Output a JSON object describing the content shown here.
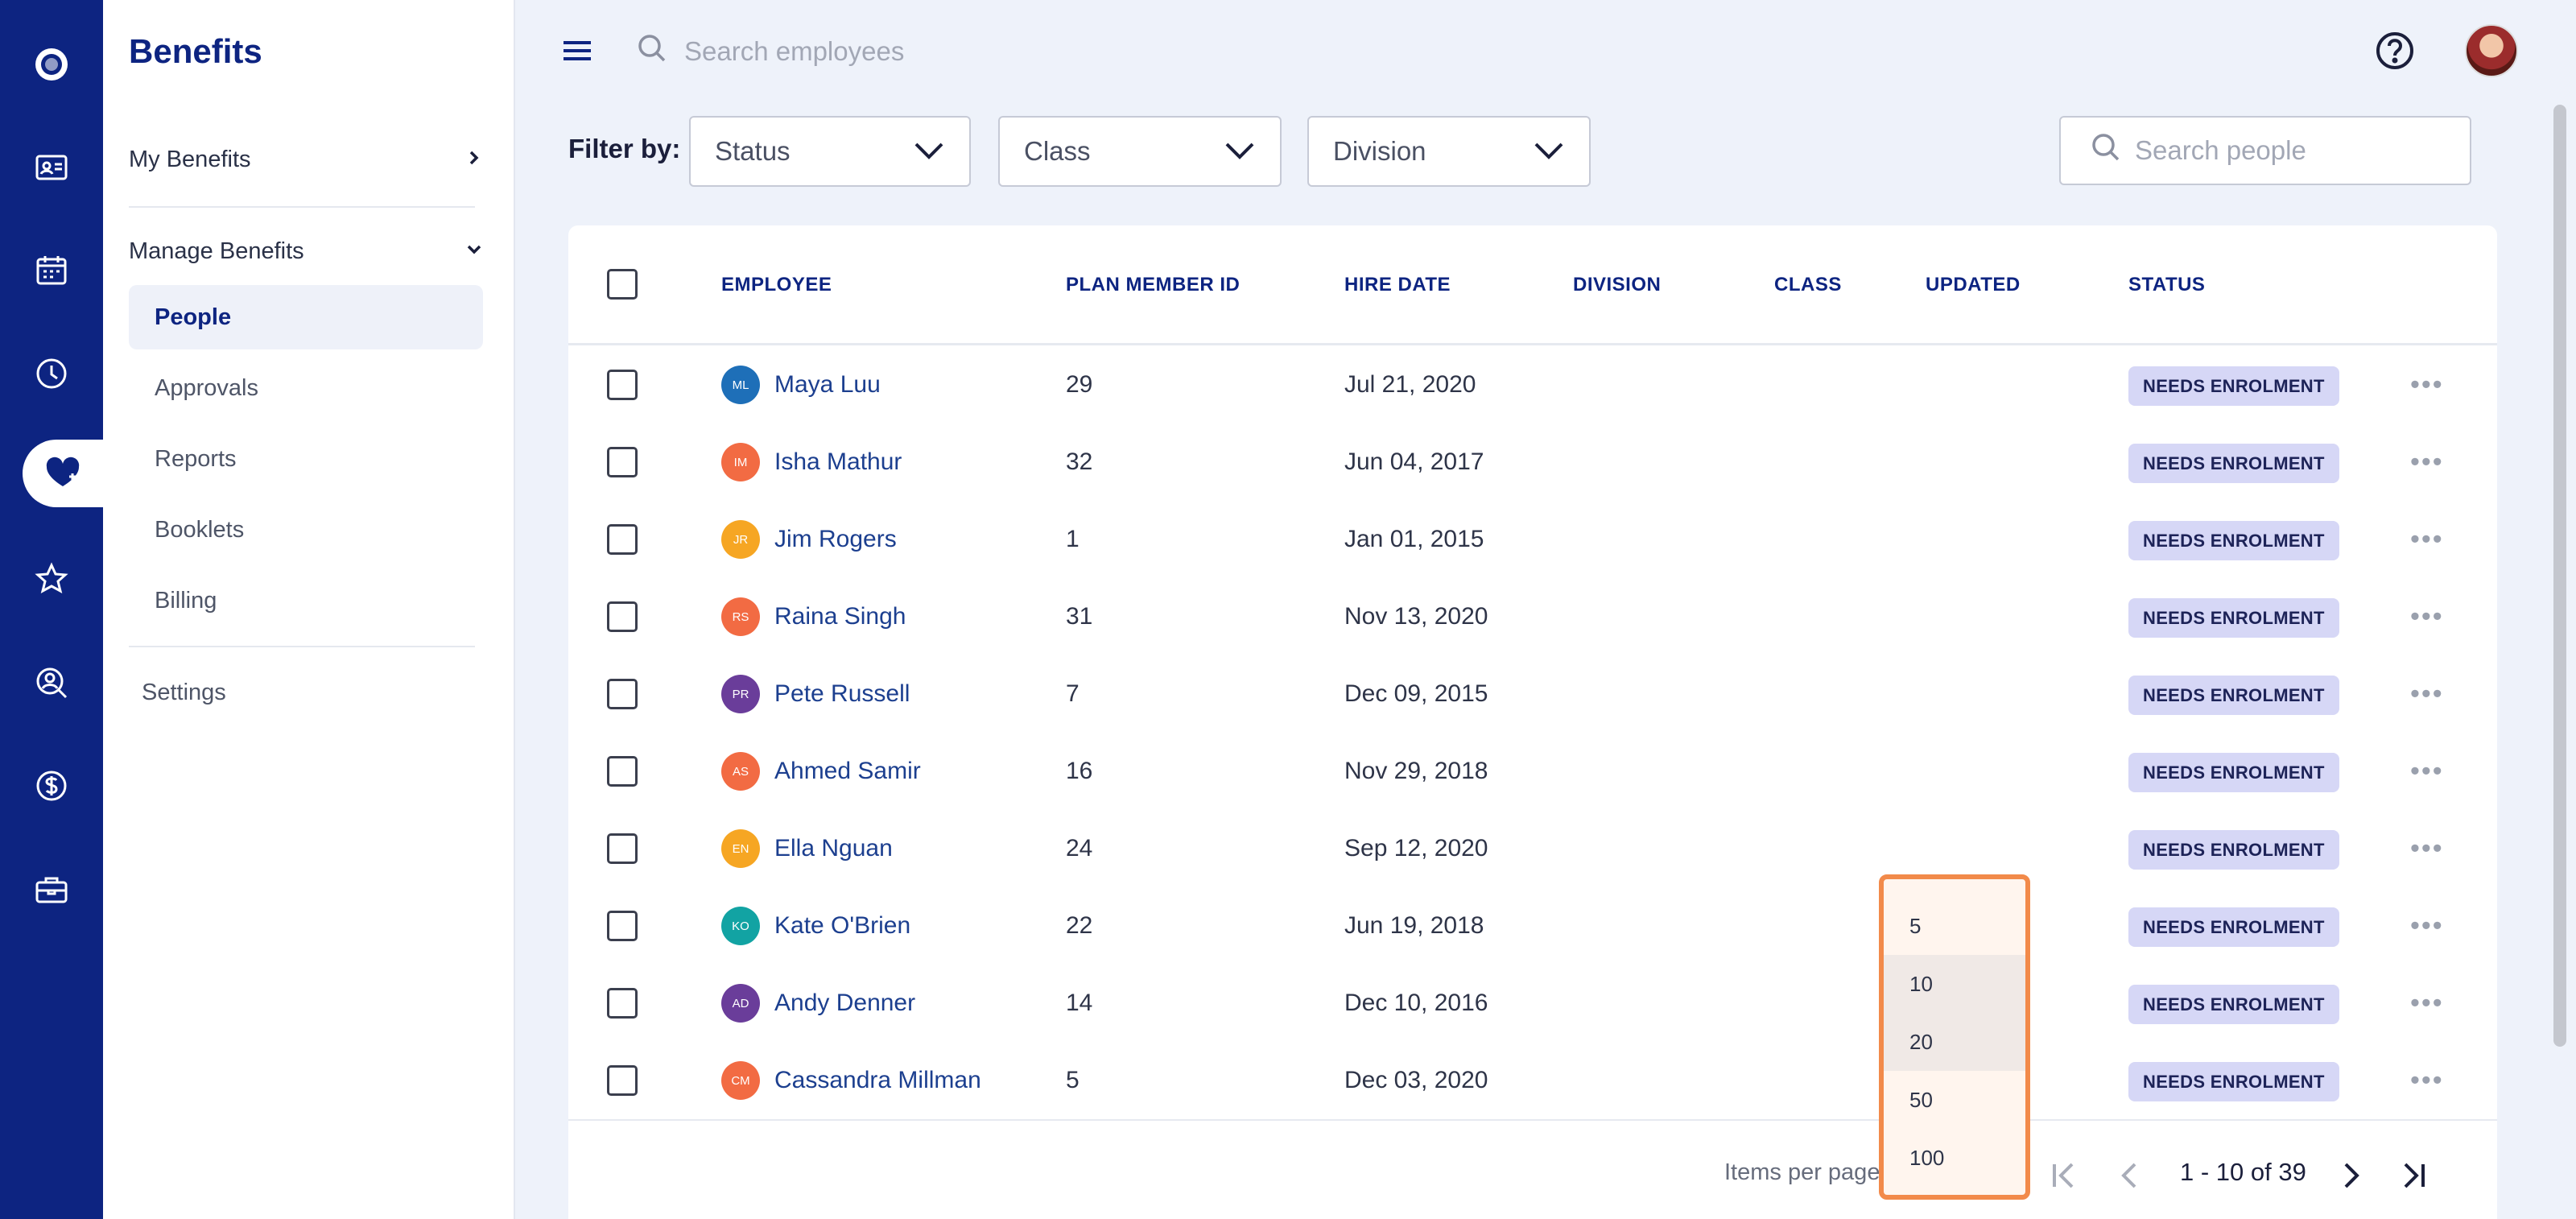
{
  "sidebar": {
    "title": "Benefits",
    "my_benefits": "My Benefits",
    "manage_benefits": "Manage Benefits",
    "items": [
      {
        "label": "People"
      },
      {
        "label": "Approvals"
      },
      {
        "label": "Reports"
      },
      {
        "label": "Booklets"
      },
      {
        "label": "Billing"
      }
    ],
    "settings": "Settings"
  },
  "topbar": {
    "search_placeholder": "Search employees"
  },
  "filters": {
    "label": "Filter by:",
    "status": "Status",
    "class": "Class",
    "division": "Division",
    "search_placeholder": "Search people"
  },
  "table": {
    "headers": [
      "EMPLOYEE",
      "PLAN MEMBER ID",
      "HIRE DATE",
      "DIVISION",
      "CLASS",
      "UPDATED",
      "STATUS"
    ],
    "rows": [
      {
        "initials": "ML",
        "name": "Maya Luu",
        "id": "29",
        "hire": "Jul 21, 2020",
        "status": "NEEDS ENROLMENT",
        "color": "#1e6fb8"
      },
      {
        "initials": "IM",
        "name": "Isha Mathur",
        "id": "32",
        "hire": "Jun 04, 2017",
        "status": "NEEDS ENROLMENT",
        "color": "#f26b43"
      },
      {
        "initials": "JR",
        "name": "Jim Rogers",
        "id": "1",
        "hire": "Jan 01, 2015",
        "status": "NEEDS ENROLMENT",
        "color": "#f6a623"
      },
      {
        "initials": "RS",
        "name": "Raina Singh",
        "id": "31",
        "hire": "Nov 13, 2020",
        "status": "NEEDS ENROLMENT",
        "color": "#f26b43"
      },
      {
        "initials": "PR",
        "name": "Pete Russell",
        "id": "7",
        "hire": "Dec 09, 2015",
        "status": "NEEDS ENROLMENT",
        "color": "#6a3d9a"
      },
      {
        "initials": "AS",
        "name": "Ahmed Samir",
        "id": "16",
        "hire": "Nov 29, 2018",
        "status": "NEEDS ENROLMENT",
        "color": "#f26b43"
      },
      {
        "initials": "EN",
        "name": "Ella Nguan",
        "id": "24",
        "hire": "Sep 12, 2020",
        "status": "NEEDS ENROLMENT",
        "color": "#f6a623"
      },
      {
        "initials": "KO",
        "name": "Kate O'Brien",
        "id": "22",
        "hire": "Jun 19, 2018",
        "status": "NEEDS ENROLMENT",
        "color": "#12a3a3"
      },
      {
        "initials": "AD",
        "name": "Andy Denner",
        "id": "14",
        "hire": "Dec 10, 2016",
        "status": "NEEDS ENROLMENT",
        "color": "#6a3d9a"
      },
      {
        "initials": "CM",
        "name": "Cassandra Millman",
        "id": "5",
        "hire": "Dec 03, 2020",
        "status": "NEEDS ENROLMENT",
        "color": "#f26b43"
      }
    ]
  },
  "pagination": {
    "items_per_page": "Items per page",
    "range": "1 - 10 of 39",
    "options": [
      "5",
      "10",
      "20",
      "50",
      "100"
    ]
  },
  "colors": {
    "brand": "#0d2481",
    "menu_border": "#f28a4a"
  }
}
